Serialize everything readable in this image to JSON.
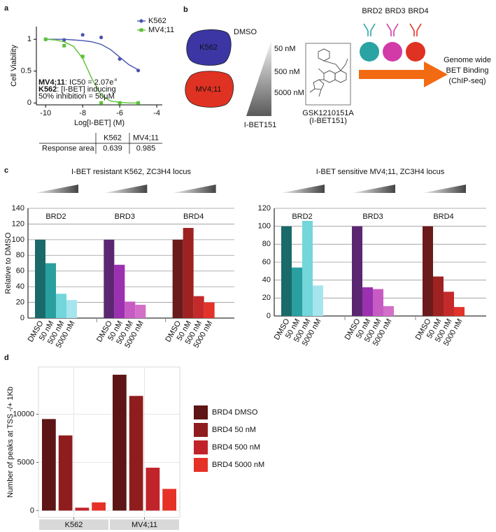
{
  "panel_labels": [
    "a",
    "b",
    "c",
    "d"
  ],
  "diagram": {
    "cells": [
      {
        "label": "K562",
        "color": "#3b36a3"
      },
      {
        "label": "MV4;11",
        "color": "#e03222"
      }
    ],
    "control": "DMSO",
    "doses": [
      "50 nM",
      "500 nM",
      "5000 nM"
    ],
    "drug": "I-BET151",
    "compound": {
      "name": "GSK1210151A",
      "alias": "(I-BET151)"
    },
    "antibodies": [
      {
        "label": "BRD2",
        "color": "#2aa3a3"
      },
      {
        "label": "BRD3",
        "color": "#d23aa8"
      },
      {
        "label": "BRD4",
        "color": "#e03222"
      }
    ],
    "arrow_color": "#f26a12",
    "readout": [
      "Genome wide",
      "BET Binding",
      "(ChIP-seq)"
    ]
  },
  "chart_data": [
    {
      "type": "line",
      "x_label": "Log[I-BET] (M)",
      "y_label": "Cell Viability",
      "xlim": [
        -10.5,
        -3.7
      ],
      "ylim": [
        -0.03,
        1.2
      ],
      "xticks": [
        -10,
        -8,
        -6,
        -4
      ],
      "yticks": [
        0,
        0.5,
        1
      ],
      "fit_x": [
        -10,
        -9.5,
        -9,
        -8.5,
        -8,
        -7.5,
        -7,
        -6.5,
        -6,
        -5.5,
        -5
      ],
      "series": [
        {
          "name": "K562",
          "color": "#4a55b0",
          "marker": "circle",
          "x": [
            -10,
            -9,
            -8,
            -7,
            -6,
            -5
          ],
          "values": [
            1.0,
            0.99,
            1.07,
            1.03,
            0.69,
            0.51
          ],
          "fit": [
            1.0,
            1.0,
            1.0,
            0.99,
            0.98,
            0.96,
            0.92,
            0.84,
            0.72,
            0.6,
            0.52
          ]
        },
        {
          "name": "MV4;11",
          "color": "#5cc236",
          "marker": "square",
          "x": [
            -10,
            -9,
            -8,
            -7,
            -6,
            -5
          ],
          "values": [
            1.0,
            0.9,
            0.73,
            0.0,
            0.0,
            0.0
          ],
          "fit": [
            1.0,
            0.99,
            0.96,
            0.89,
            0.7,
            0.38,
            0.12,
            0.03,
            0.01,
            0.0,
            0.0
          ]
        }
      ],
      "annotation": [
        {
          "bold": "MV4;11",
          "text": ": IC50 = 2.07e",
          "sup": "-8"
        },
        {
          "bold": "K562",
          "text": ": [I-BET] inducing"
        },
        {
          "text": "50% inhibition = 50µM"
        }
      ],
      "response_table": {
        "header": [
          "K562",
          "MV4;11"
        ],
        "rows": [
          {
            "label": "Response area",
            "values": [
              0.639,
              0.985
            ]
          }
        ]
      }
    },
    {
      "type": "grouped-bar",
      "title": "I-BET resistant K562, ZC3H4 locus",
      "y_label": "Relative to DMSO",
      "ylim": [
        0,
        140
      ],
      "yticks": [
        0,
        20,
        40,
        60,
        80,
        100,
        120,
        140
      ],
      "grid": true,
      "categories": [
        "DMSO",
        "50 nM",
        "500 nM",
        "5000 nM"
      ],
      "groups": [
        {
          "name": "BRD2",
          "colors": [
            "#1b6a6a",
            "#2a9fa0",
            "#72d6db",
            "#a7e5ee"
          ],
          "values": [
            100,
            70,
            31,
            23
          ]
        },
        {
          "name": "BRD3",
          "colors": [
            "#5b2771",
            "#9b30b0",
            "#c75bc4",
            "#d46fc9"
          ],
          "values": [
            100,
            68,
            21,
            17
          ]
        },
        {
          "name": "BRD4",
          "colors": [
            "#6a1b1b",
            "#9e2222",
            "#c42a2a",
            "#e3322a"
          ],
          "values": [
            100,
            115,
            28,
            20
          ]
        }
      ]
    },
    {
      "type": "grouped-bar",
      "title": "I-BET sensitive MV4;11, ZC3H4 locus",
      "ylim": [
        0,
        120
      ],
      "yticks": [
        0,
        20,
        40,
        60,
        80,
        100,
        120
      ],
      "grid": true,
      "categories": [
        "DMSO",
        "50 nM",
        "500 nM",
        "5000 nM"
      ],
      "groups": [
        {
          "name": "BRD2",
          "colors": [
            "#1b6a6a",
            "#2a9fa0",
            "#72d6db",
            "#a7e5ee"
          ],
          "values": [
            100,
            54,
            106,
            34
          ]
        },
        {
          "name": "BRD3",
          "colors": [
            "#5b2771",
            "#9b30b0",
            "#c75bc4",
            "#d46fc9"
          ],
          "values": [
            100,
            32,
            30,
            11
          ]
        },
        {
          "name": "BRD4",
          "colors": [
            "#6a1b1b",
            "#9e2222",
            "#c42a2a",
            "#e3322a"
          ],
          "values": [
            100,
            44,
            27,
            10
          ]
        }
      ]
    },
    {
      "type": "bar",
      "y_label": "Number of peaks at TSS -/+ 1Kb",
      "ylim": [
        -700,
        14900
      ],
      "yticks": [
        0,
        5000,
        10000
      ],
      "grid": true,
      "legend": "right",
      "categories": [
        "K562",
        "MV4;11"
      ],
      "series": [
        {
          "name": "BRD4 DMSO",
          "color": "#5e1515",
          "values": [
            9500,
            14100
          ]
        },
        {
          "name": "BRD4 50 nM",
          "color": "#8f1d1d",
          "values": [
            7800,
            11900
          ]
        },
        {
          "name": "BRD4 500 nM",
          "color": "#c0242a",
          "values": [
            300,
            4450
          ]
        },
        {
          "name": "BRD4 5000 nM",
          "color": "#e63127",
          "values": [
            850,
            2250
          ]
        }
      ]
    }
  ]
}
